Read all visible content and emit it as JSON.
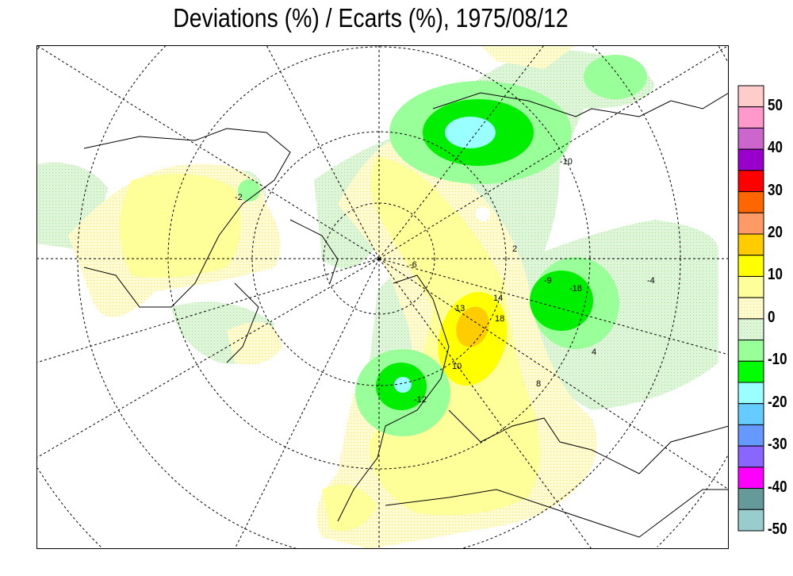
{
  "title": "Deviations (%) / Ecarts (%), 1975/08/12",
  "legend": {
    "colors": [
      "#ffcccc",
      "#ff99cc",
      "#cc66cc",
      "#9900cc",
      "#ff0000",
      "#ff6600",
      "#ff9966",
      "#ffcc00",
      "#ffff00",
      "#ffff99",
      "#fffacd-dotted",
      "#e8f5e0-dotted",
      "#99ff99",
      "#00ff00",
      "#99ffff",
      "#66ccff",
      "#6699ff",
      "#8866ff",
      "#ff00ff",
      "#669999",
      "#99cccc"
    ],
    "labels": [
      "50",
      "40",
      "30",
      "20",
      "10",
      "0",
      "-10",
      "-20",
      "-30",
      "-40",
      "-50"
    ]
  },
  "contour_labels": [
    "-2",
    "2",
    "-6",
    "13",
    "14",
    "18",
    "-18",
    "-12",
    "-10",
    "-4",
    "-9",
    "10",
    "8",
    "4"
  ]
}
